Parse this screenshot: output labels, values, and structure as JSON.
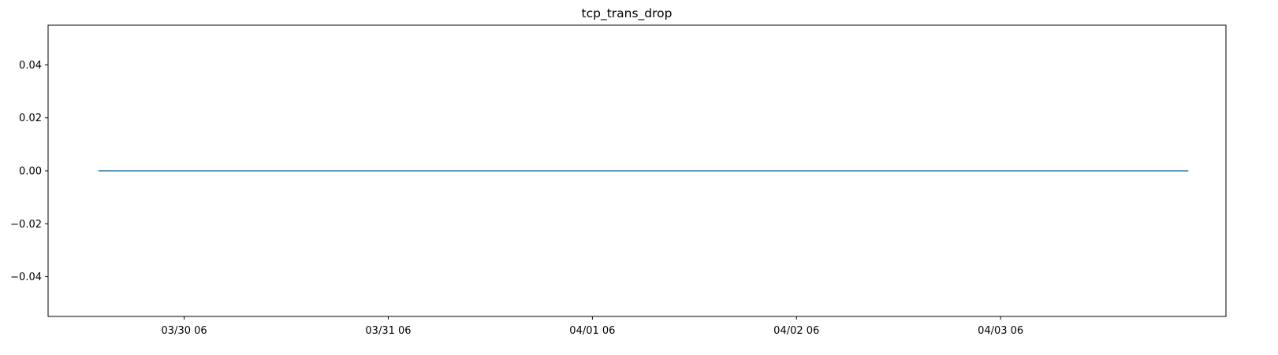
{
  "chart_data": {
    "type": "line",
    "title": "tcp_trans_drop",
    "xlabel": "",
    "ylabel": "",
    "x_axis_kind": "datetime",
    "x_tick_labels": [
      "03/30 06",
      "03/31 06",
      "04/01 06",
      "04/02 06",
      "04/03 06"
    ],
    "x_tick_times": [
      "2024-03-30T06:00",
      "2024-03-31T06:00",
      "2024-04-01T06:00",
      "2024-04-02T06:00",
      "2024-04-03T06:00"
    ],
    "xlim": [
      "2024-03-29T14:00",
      "2024-04-04T08:30"
    ],
    "ylim": [
      -0.055,
      0.055
    ],
    "y_ticks": [
      -0.04,
      -0.02,
      0.0,
      0.02,
      0.04
    ],
    "y_tick_labels": [
      "−0.04",
      "−0.02",
      "0.00",
      "0.02",
      "0.04"
    ],
    "grid": false,
    "legend": "none",
    "series": [
      {
        "color": "#1f77b4",
        "x": [
          "2024-03-29T20:00",
          "2024-04-04T04:00"
        ],
        "y": [
          0,
          0
        ]
      }
    ]
  }
}
